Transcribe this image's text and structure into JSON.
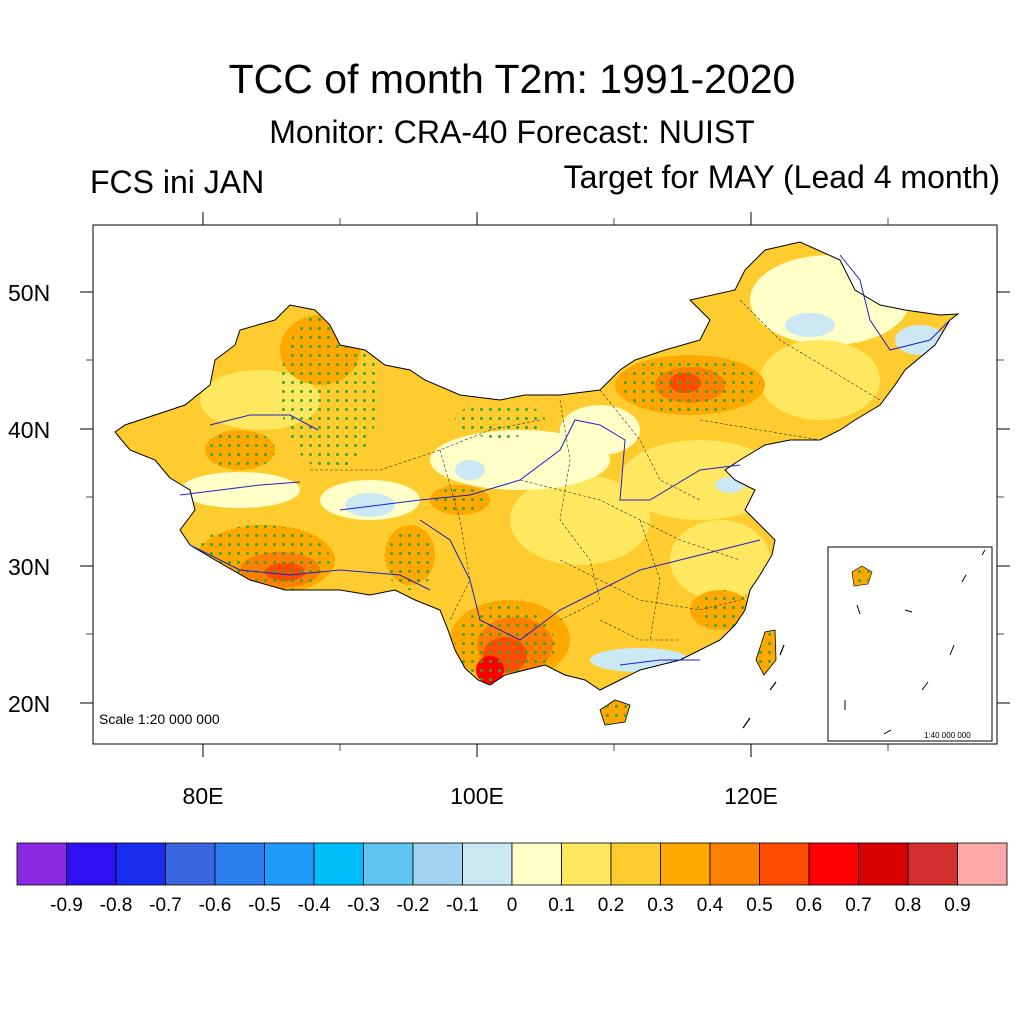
{
  "title": "TCC of month T2m: 1991-2020",
  "subtitle": "Monitor: CRA-40   Forecast: NUIST",
  "left_label": "FCS ini JAN",
  "right_label": "Target for MAY (Lead 4 month)",
  "scale_main": "Scale 1:20 000 000",
  "scale_inset": "1:40 000 000",
  "lat_labels": [
    "50N",
    "40N",
    "30N",
    "20N"
  ],
  "lon_labels": [
    "80E",
    "100E",
    "120E"
  ],
  "colorbar": {
    "colors": [
      "#8a2be2",
      "#3010f0",
      "#1a2cf0",
      "#3a66e0",
      "#2a7ef0",
      "#1c9cf8",
      "#00bff8",
      "#5ec4f0",
      "#a0d4f0",
      "#cce8f4",
      "#ffffc8",
      "#ffe860",
      "#ffcc30",
      "#ffa800",
      "#ff8000",
      "#ff4c00",
      "#ff0000",
      "#d80000",
      "#d43030",
      "#ffa8a8"
    ],
    "labels": [
      "-0.9",
      "-0.8",
      "-0.7",
      "-0.6",
      "-0.5",
      "-0.4",
      "-0.3",
      "-0.2",
      "-0.1",
      "0",
      "0.1",
      "0.2",
      "0.3",
      "0.4",
      "0.5",
      "0.6",
      "0.7",
      "0.8",
      "0.9"
    ]
  },
  "legend_colors": {
    "stipple": "#2ea82e",
    "river": "#2020c8",
    "border": "#000000"
  }
}
